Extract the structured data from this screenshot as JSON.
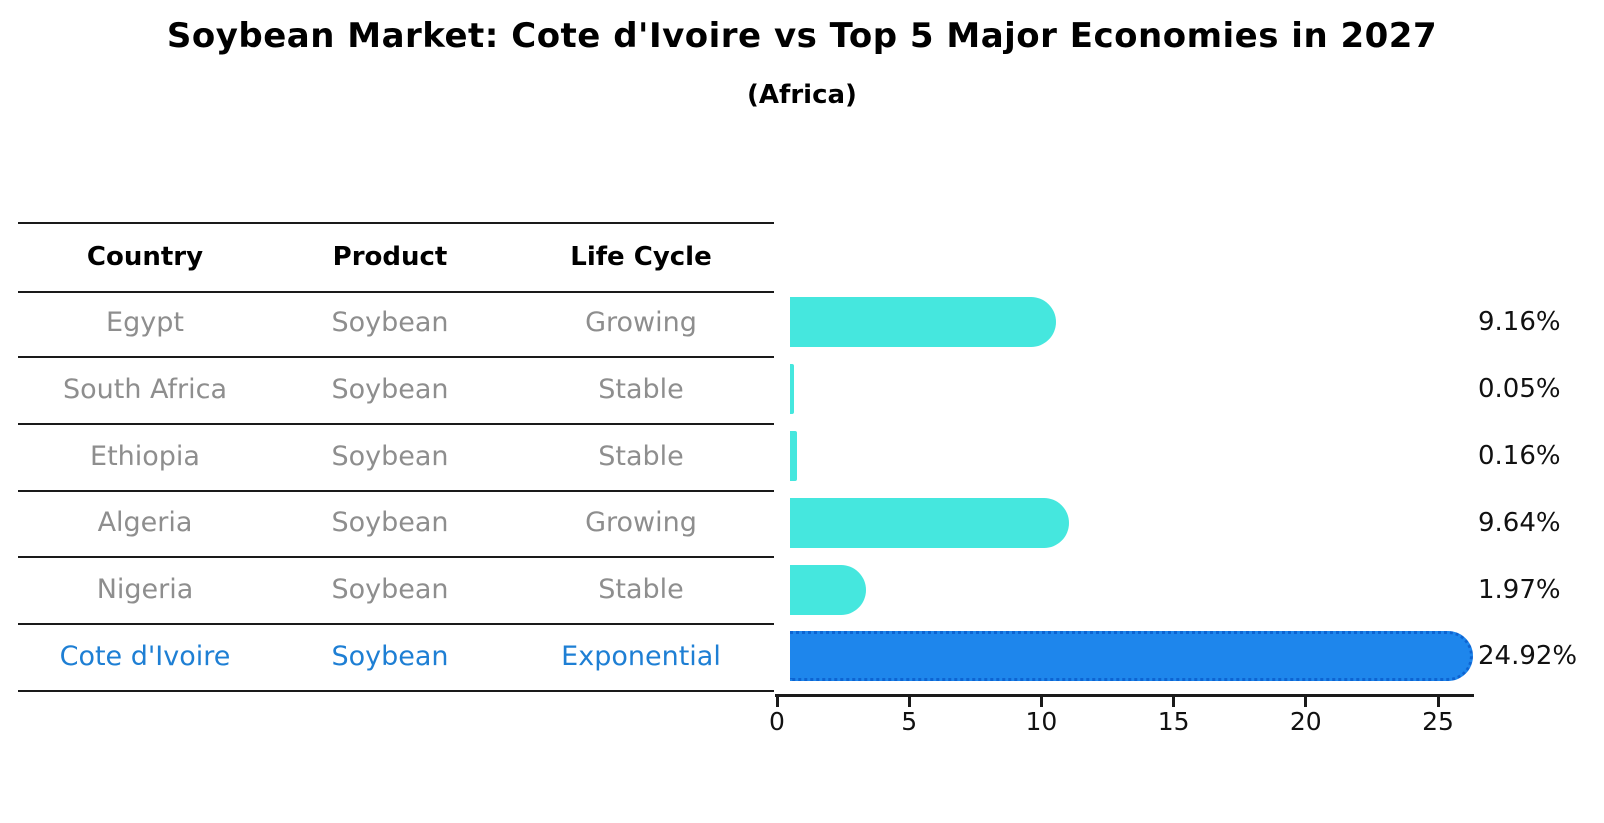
{
  "title": "Soybean Market: Cote d'Ivoire vs Top 5 Major Economies in 2027",
  "subtitle": "(Africa)",
  "table": {
    "headers": [
      "Country",
      "Product",
      "Life Cycle"
    ],
    "rows": [
      {
        "country": "Egypt",
        "product": "Soybean",
        "life_cycle": "Growing",
        "highlight": false
      },
      {
        "country": "South Africa",
        "product": "Soybean",
        "life_cycle": "Stable",
        "highlight": false
      },
      {
        "country": "Ethiopia",
        "product": "Soybean",
        "life_cycle": "Stable",
        "highlight": false
      },
      {
        "country": "Algeria",
        "product": "Soybean",
        "life_cycle": "Growing",
        "highlight": false
      },
      {
        "country": "Nigeria",
        "product": "Soybean",
        "life_cycle": "Stable",
        "highlight": false
      },
      {
        "country": "Cote d'Ivoire",
        "product": "Soybean",
        "life_cycle": "Exponential",
        "highlight": true
      }
    ]
  },
  "chart_data": {
    "type": "bar",
    "orientation": "horizontal",
    "title": "Soybean Market: Cote d'Ivoire vs Top 5 Major Economies in 2027",
    "subtitle": "(Africa)",
    "categories": [
      "Egypt",
      "South Africa",
      "Ethiopia",
      "Algeria",
      "Nigeria",
      "Cote d'Ivoire"
    ],
    "values": [
      9.16,
      0.05,
      0.16,
      9.64,
      1.97,
      24.92
    ],
    "value_labels": [
      "9.16%",
      "0.05%",
      "0.16%",
      "9.64%",
      "1.97%",
      "24.92%"
    ],
    "x_ticks": [
      0,
      5,
      10,
      15,
      20,
      25
    ],
    "xlim": [
      0,
      26.4
    ],
    "grid": false,
    "legend": false,
    "highlight_index": 5
  },
  "colors": {
    "bar_default": "#45e7de",
    "bar_highlight": "#1e86ec",
    "bar_highlight_border": "#0d64d2",
    "highlight_text": "#1e7fd4",
    "row_text": "#8e8e8e",
    "header_text": "#000000",
    "axis": "#1a1a1a"
  }
}
